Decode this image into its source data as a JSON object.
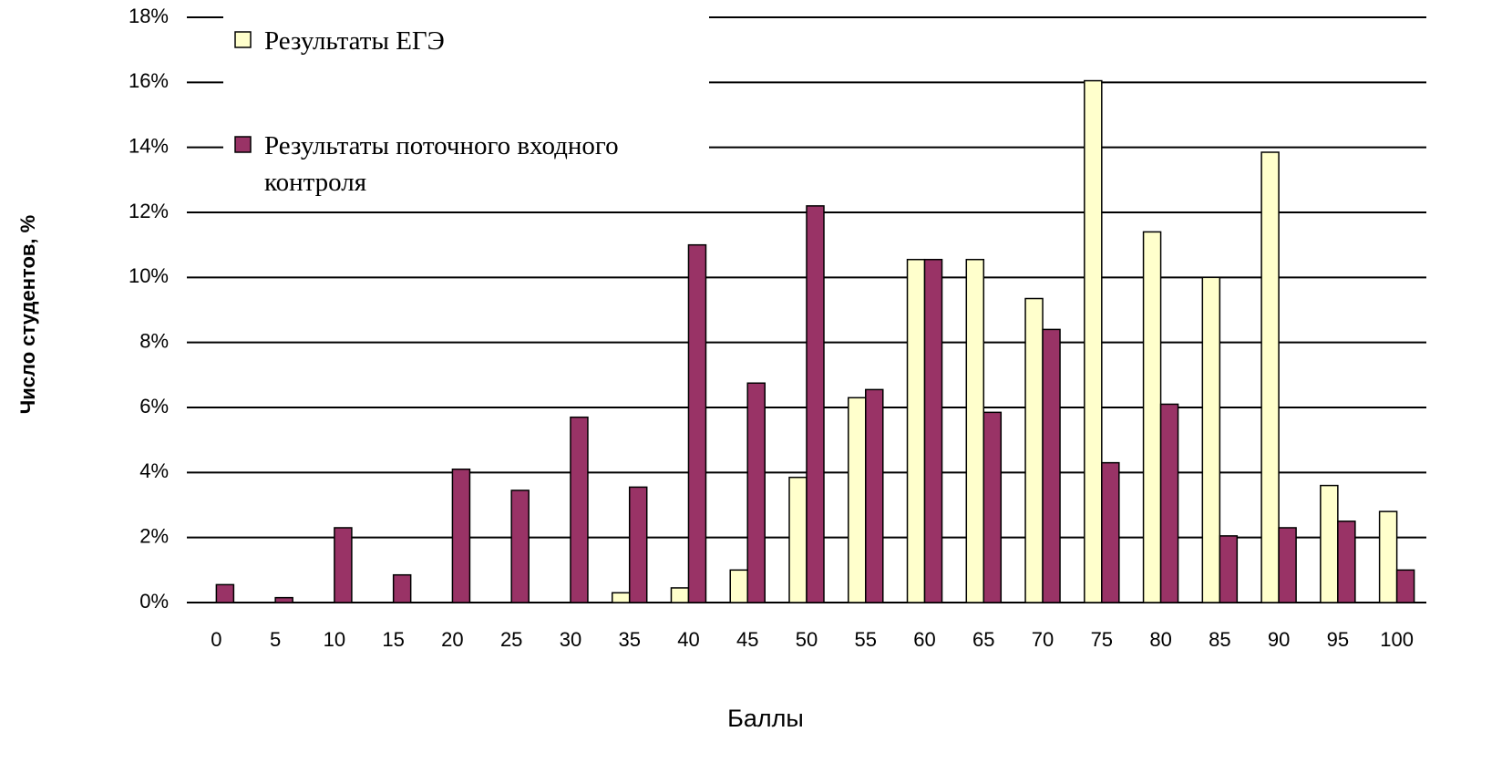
{
  "chart_data": {
    "type": "bar",
    "categories": [
      "0",
      "5",
      "10",
      "15",
      "20",
      "25",
      "30",
      "35",
      "40",
      "45",
      "50",
      "55",
      "60",
      "65",
      "70",
      "75",
      "80",
      "85",
      "90",
      "95",
      "100"
    ],
    "series": [
      {
        "name": "Результаты ЕГЭ",
        "color": "#ffffcc",
        "values": [
          0,
          0,
          0,
          0,
          0,
          0,
          0,
          0.3,
          0.45,
          1.0,
          3.85,
          6.3,
          10.55,
          10.55,
          9.35,
          16.05,
          11.4,
          10.0,
          13.85,
          3.6,
          2.8
        ]
      },
      {
        "name": "Результаты поточного входного контроля",
        "color": "#993366",
        "values": [
          0.55,
          0.15,
          2.3,
          0.85,
          4.1,
          3.45,
          5.7,
          3.55,
          11.0,
          6.75,
          12.2,
          6.55,
          10.55,
          5.85,
          8.4,
          4.3,
          6.1,
          2.05,
          2.3,
          2.5,
          1.0
        ]
      }
    ],
    "xlabel": "Баллы",
    "ylabel": "Число студентов, %",
    "ylim": [
      0,
      18
    ],
    "yticks": [
      {
        "value": 0,
        "label": "0%"
      },
      {
        "value": 2,
        "label": "2%"
      },
      {
        "value": 4,
        "label": "4%"
      },
      {
        "value": 6,
        "label": "6%"
      },
      {
        "value": 8,
        "label": "8%"
      },
      {
        "value": 10,
        "label": "10%"
      },
      {
        "value": 12,
        "label": "12%"
      },
      {
        "value": 14,
        "label": "14%"
      },
      {
        "value": 16,
        "label": "16%"
      },
      {
        "value": 18,
        "label": "18%"
      }
    ],
    "grid": true
  }
}
